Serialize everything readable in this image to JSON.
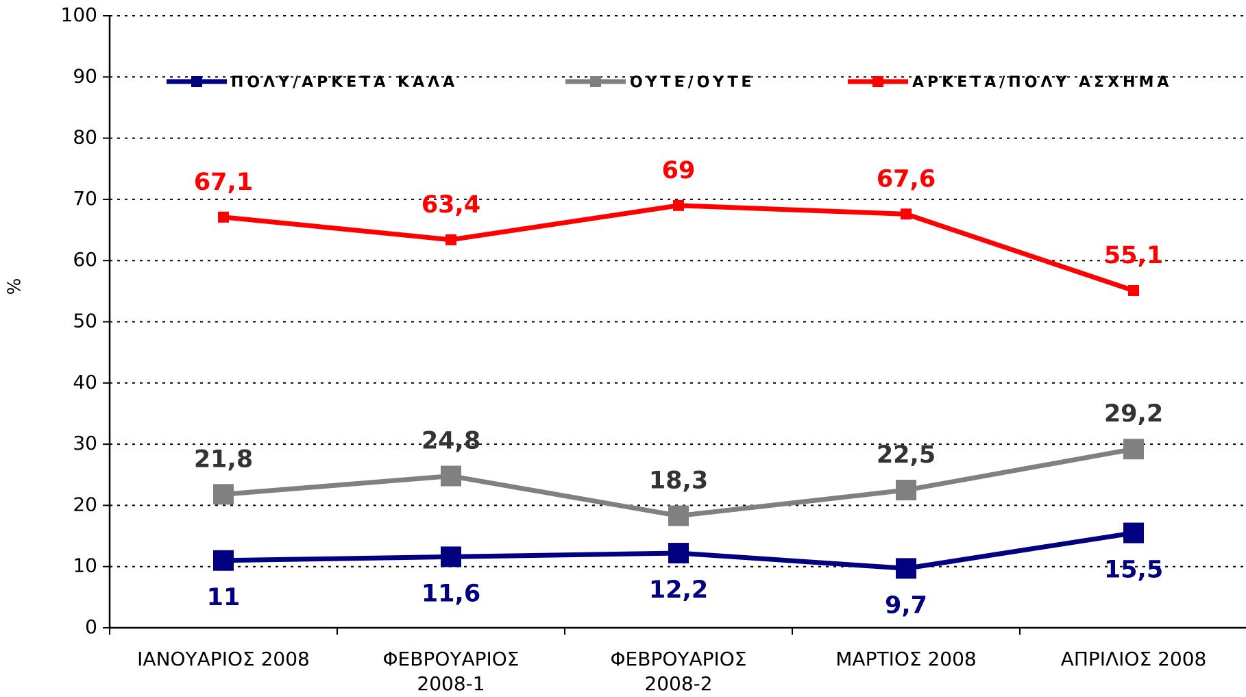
{
  "chart_data": {
    "type": "line",
    "y_label": "%",
    "categories": [
      "ΙΑΝΟΥΑΡΙΟΣ 2008",
      "ΦΕΒΡΟΥΑΡΙΟΣ\n2008-1",
      "ΦΕΒΡΟΥΑΡΙΟΣ\n2008-2",
      "ΜΑΡΤΙΟΣ 2008",
      "ΑΠΡΙΛΙΟΣ 2008"
    ],
    "series": [
      {
        "name": "ΠΟΛΥ/ΑΡΚΕΤΑ ΚΑΛΑ",
        "color": "#000080",
        "values": [
          11,
          11.6,
          12.2,
          9.7,
          15.5
        ],
        "value_labels": [
          "11",
          "11,6",
          "12,2",
          "9,7",
          "15,5"
        ]
      },
      {
        "name": "ΟΥΤΕ/ΟΥΤΕ",
        "color": "#808080",
        "values": [
          21.8,
          24.8,
          18.3,
          22.5,
          29.2
        ],
        "value_labels": [
          "21,8",
          "24,8",
          "18,3",
          "22,5",
          "29,2"
        ]
      },
      {
        "name": "ΑΡΚΕΤΑ/ΠΟΛΥ ΑΣΧΗΜΑ",
        "color": "#ff0000",
        "values": [
          67.1,
          63.4,
          69,
          67.6,
          55.1
        ],
        "value_labels": [
          "67,1",
          "63,4",
          "69",
          "67,6",
          "55,1"
        ]
      }
    ],
    "ylim": [
      0,
      100
    ],
    "yticks": [
      0,
      10,
      20,
      30,
      40,
      50,
      60,
      70,
      80,
      90,
      100
    ],
    "grid": true
  }
}
